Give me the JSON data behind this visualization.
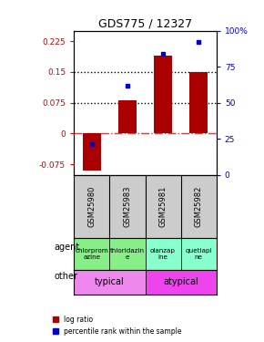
{
  "title": "GDS775 / 12327",
  "samples": [
    "GSM25980",
    "GSM25983",
    "GSM25981",
    "GSM25982"
  ],
  "log_ratios": [
    -0.09,
    0.08,
    0.19,
    0.15
  ],
  "percentile_ranks": [
    0.21,
    0.62,
    0.84,
    0.92
  ],
  "ylim_left": [
    -0.1,
    0.25
  ],
  "ylim_right": [
    0,
    1.0
  ],
  "yticks_left": [
    -0.075,
    0,
    0.075,
    0.15,
    0.225
  ],
  "ytick_labels_left": [
    "-0.075",
    "0",
    "0.075",
    "0.15",
    "0.225"
  ],
  "yticks_right": [
    0.0,
    0.25,
    0.5,
    0.75,
    1.0
  ],
  "ytick_labels_right": [
    "0",
    "25",
    "50",
    "75",
    "100%"
  ],
  "hlines": [
    0.075,
    0.15
  ],
  "bar_color": "#aa0000",
  "dot_color": "#0000cc",
  "agent_labels": [
    "chlorprom\nazine",
    "thioridazin\ne",
    "olanzap\nine",
    "quetiapi\nne"
  ],
  "agent_colors_left": [
    "#88ee88",
    "#88ee88"
  ],
  "agent_colors_right": [
    "#88ffcc",
    "#88ffcc"
  ],
  "other_label_left": "typical",
  "other_label_right": "atypical",
  "other_color_left": "#ee88ee",
  "other_color_right": "#ee44ee",
  "sample_bg_color": "#cccccc",
  "left_label_color": "#cc0000",
  "right_label_color": "#0000cc",
  "zero_line_color": "#cc4444",
  "dotted_line_color": "#000000",
  "legend_red": "log ratio",
  "legend_blue": "percentile rank within the sample"
}
